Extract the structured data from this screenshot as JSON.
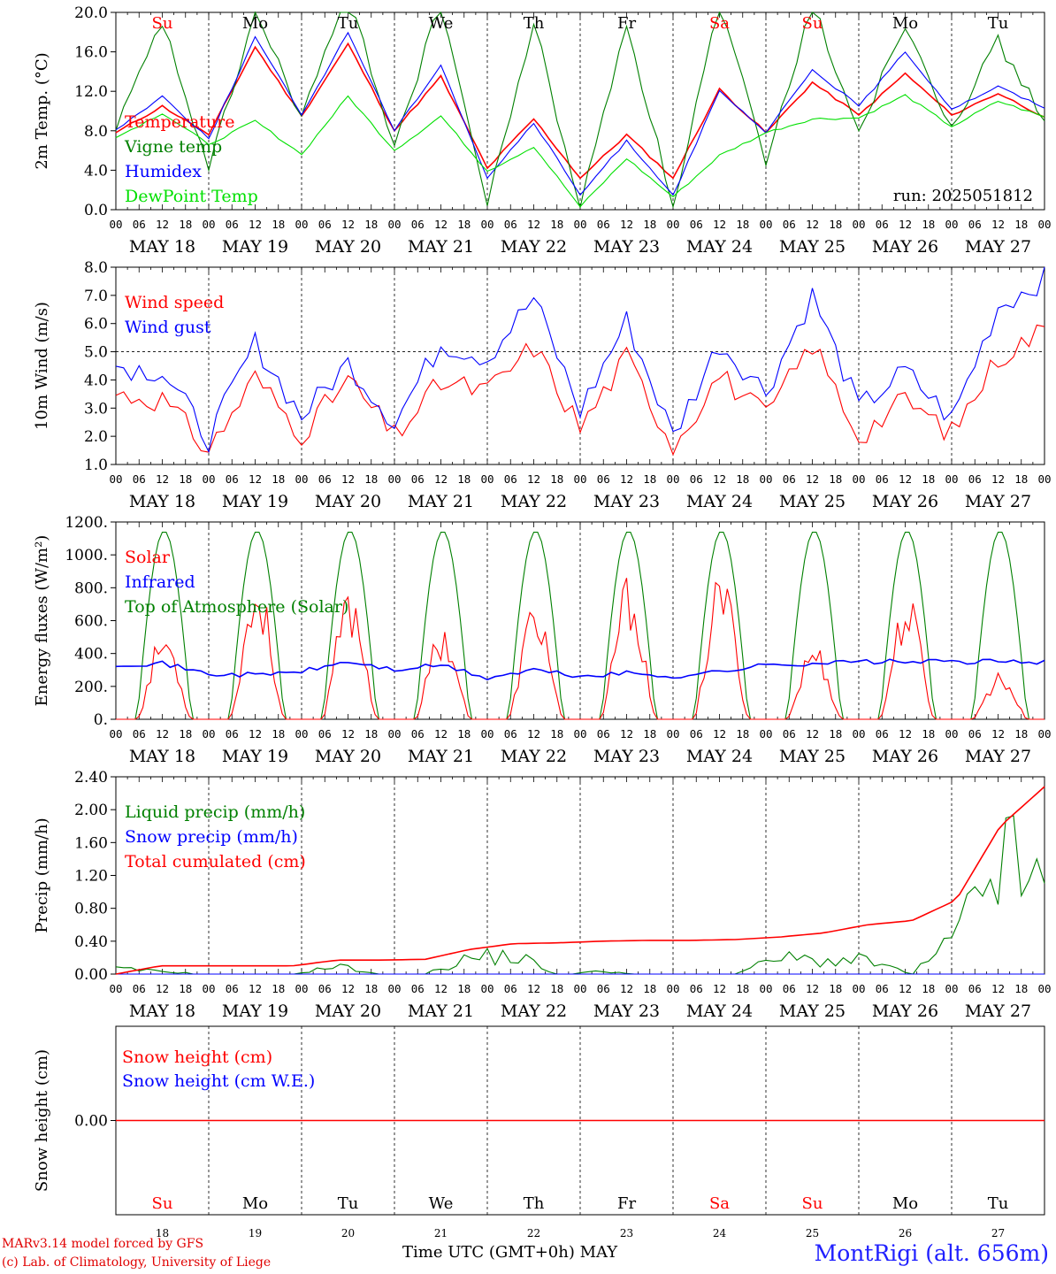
{
  "chart_data": [
    {
      "type": "line",
      "ylabel": "2m Temp. (°C)",
      "ylim": [
        0,
        20
      ],
      "yticks": [
        "0.0",
        "4.0",
        "8.0",
        "12.0",
        "16.0",
        "20.0"
      ],
      "x_hours_from_may18_00": [
        0,
        12,
        24,
        36,
        48,
        60,
        72,
        84,
        96,
        108,
        120,
        132,
        144,
        156,
        168,
        180,
        192,
        204,
        216,
        228,
        240
      ],
      "annotation": "run: 2025051812",
      "series": [
        {
          "name": "Temperature",
          "color": "#ff0000",
          "values": [
            7.8,
            10.5,
            7.6,
            16.5,
            9.5,
            16.8,
            8.0,
            13.5,
            4.2,
            9.2,
            3.2,
            7.6,
            3.2,
            12.2,
            7.8,
            12.9,
            9.6,
            13.8,
            9.6,
            11.8,
            9.4
          ]
        },
        {
          "name": "Vigne temp",
          "color": "#008000",
          "values": [
            8.0,
            19.0,
            4.0,
            20.0,
            9.5,
            22.0,
            6.5,
            21.0,
            0.4,
            19.0,
            0.2,
            19.0,
            0.3,
            21.0,
            4.5,
            21.0,
            8.0,
            19.0,
            8.5,
            17.0,
            9.0
          ]
        },
        {
          "name": "Humidex",
          "color": "#0000ff",
          "values": [
            8.1,
            11.5,
            7.2,
            17.5,
            9.6,
            18.0,
            8.0,
            14.7,
            3.2,
            8.8,
            1.5,
            7.0,
            1.5,
            12.0,
            7.8,
            14.2,
            10.5,
            16.0,
            10.2,
            12.5,
            10.3
          ]
        },
        {
          "name": "DewPoint Temp",
          "color": "#00e000",
          "values": [
            7.3,
            9.8,
            6.6,
            9.0,
            5.6,
            11.5,
            6.0,
            9.5,
            3.9,
            6.4,
            0.3,
            5.2,
            1.3,
            5.5,
            7.8,
            9.2,
            9.3,
            11.6,
            8.4,
            11.0,
            9.4
          ]
        }
      ]
    },
    {
      "type": "line",
      "ylabel": "10m Wind (m/s)",
      "ylim": [
        1,
        8
      ],
      "yticks": [
        "1.0",
        "2.0",
        "3.0",
        "4.0",
        "5.0",
        "6.0",
        "7.0",
        "8.0"
      ],
      "reference_line": 5.0,
      "x_hours_from_may18_00": [
        0,
        12,
        24,
        36,
        48,
        60,
        72,
        84,
        96,
        108,
        120,
        132,
        144,
        156,
        168,
        180,
        192,
        204,
        216,
        228,
        240
      ],
      "series": [
        {
          "name": "Wind speed",
          "color": "#ff0000",
          "values": [
            3.5,
            3.3,
            1.5,
            4.1,
            2.1,
            4.0,
            2.0,
            3.9,
            3.6,
            5.2,
            2.3,
            4.8,
            1.7,
            4.2,
            2.7,
            5.3,
            2.0,
            3.3,
            2.1,
            4.8,
            5.8
          ]
        },
        {
          "name": "Wind gust",
          "color": "#0000ff",
          "values": [
            4.5,
            4.3,
            1.9,
            5.3,
            2.7,
            4.6,
            2.5,
            5.3,
            4.8,
            6.9,
            2.9,
            6.1,
            2.0,
            5.3,
            3.6,
            7.0,
            3.0,
            4.3,
            2.6,
            6.6,
            7.6
          ]
        }
      ]
    },
    {
      "type": "line",
      "ylabel": "Energy fluxes (W/m²)",
      "ylim": [
        0,
        1200
      ],
      "yticks": [
        "0.",
        "200.",
        "400.",
        "600.",
        "800.",
        "1000.",
        "1200."
      ],
      "series": [
        {
          "name": "Solar",
          "color": "#ff0000",
          "peaks": [
            560,
            880,
            820,
            600,
            750,
            890,
            920,
            480,
            780,
            300
          ]
        },
        {
          "name": "Infrared",
          "color": "#0000ff",
          "values": [
            335,
            340,
            275,
            270,
            290,
            350,
            300,
            330,
            250,
            300,
            260,
            280,
            260,
            290,
            330,
            340,
            350,
            350,
            350,
            350,
            350
          ]
        },
        {
          "name": "Top of Atmosphere (Solar)",
          "color": "#008000",
          "peak": 1145
        }
      ]
    },
    {
      "type": "line",
      "ylabel": "Precip (mm/h)",
      "ylim": [
        0,
        2.4
      ],
      "yticks": [
        "0.00",
        "0.40",
        "0.80",
        "1.20",
        "1.60",
        "2.00",
        "2.40"
      ],
      "series": [
        {
          "name": "Liquid precip (mm/h)",
          "color": "#008000",
          "values": [
            0.1,
            0.05,
            0,
            0,
            0,
            0.15,
            0,
            0,
            0.3,
            0.35,
            0,
            0.05,
            0,
            0,
            0,
            0.3,
            0.25,
            0.25,
            0,
            0.65,
            2.2,
            1.5
          ]
        },
        {
          "name": "Snow precip (mm/h)",
          "color": "#0000ff",
          "values": [
            0,
            0,
            0,
            0,
            0,
            0,
            0,
            0,
            0,
            0,
            0,
            0,
            0,
            0,
            0,
            0,
            0,
            0,
            0,
            0,
            0,
            0
          ]
        },
        {
          "name": "Total cumulated (cm)",
          "color": "#ff0000",
          "values": [
            0.0,
            0.1,
            0.1,
            0.1,
            0.1,
            0.17,
            0.17,
            0.18,
            0.3,
            0.37,
            0.38,
            0.4,
            0.41,
            0.41,
            0.42,
            0.45,
            0.5,
            0.6,
            0.65,
            0.9,
            1.8,
            2.28
          ]
        }
      ]
    },
    {
      "type": "line",
      "ylabel": "Snow height (cm)",
      "ytick": "0.00",
      "series": [
        {
          "name": "Snow height (cm)",
          "color": "#ff0000",
          "values": [
            0,
            0
          ]
        },
        {
          "name": "Snow height (cm W.E.)",
          "color": "#0000ff",
          "values": [
            0,
            0
          ]
        }
      ]
    }
  ],
  "x_axis": {
    "hour_ticks": [
      "00",
      "06",
      "12",
      "18"
    ],
    "final_tick": "00",
    "dates": [
      "MAY 18",
      "MAY 19",
      "MAY 20",
      "MAY 21",
      "MAY 22",
      "MAY 23",
      "MAY 24",
      "MAY 25",
      "MAY 26",
      "MAY 27"
    ],
    "weekdays": [
      "Su",
      "Mo",
      "Tu",
      "We",
      "Th",
      "Fr",
      "Sa",
      "Su",
      "Mo",
      "Tu"
    ],
    "day_numbers": [
      "18",
      "19",
      "20",
      "21",
      "22",
      "23",
      "24",
      "25",
      "26",
      "27"
    ],
    "weekend_color": "#ff0000",
    "title": "Time UTC (GMT+0h)",
    "month": "MAY"
  },
  "footer": {
    "credit_line1": "MARv3.14 model forced by GFS",
    "credit_line2": "(c) Lab. of Climatology, University of Liege",
    "station": "MontRigi (alt. 656m)"
  }
}
